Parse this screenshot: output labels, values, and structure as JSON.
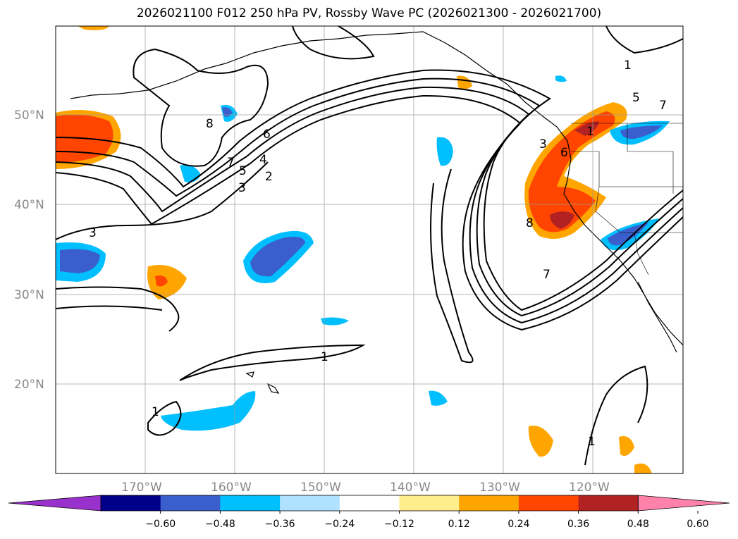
{
  "title": "2026021100 F012 250 hPa PV, Rossby Wave PC (2026021300 - 2026021700)",
  "map": {
    "lat_labels": [
      "50°N",
      "40°N",
      "30°N",
      "20°N"
    ],
    "lon_labels": [
      "170°W",
      "160°W",
      "150°W",
      "140°W",
      "130°W",
      "120°W"
    ],
    "contour_labels": [
      "8",
      "7",
      "6",
      "5",
      "4",
      "3",
      "2",
      "3",
      "8",
      "3",
      "6",
      "7",
      "1",
      "5",
      "7",
      "1",
      "1",
      "1",
      "1"
    ]
  },
  "colorbar": {
    "ticks": [
      "−0.60",
      "−0.48",
      "−0.36",
      "−0.24",
      "−0.12",
      "0.12",
      "0.24",
      "0.36",
      "0.48",
      "0.60"
    ],
    "colors": [
      "#9932cc",
      "#00008b",
      "#3a5fcd",
      "#00bfff",
      "#b0e2ff",
      "#ffffff",
      "#ffec8b",
      "#ffa500",
      "#ff4500",
      "#b22222",
      "#ff82ab"
    ]
  }
}
